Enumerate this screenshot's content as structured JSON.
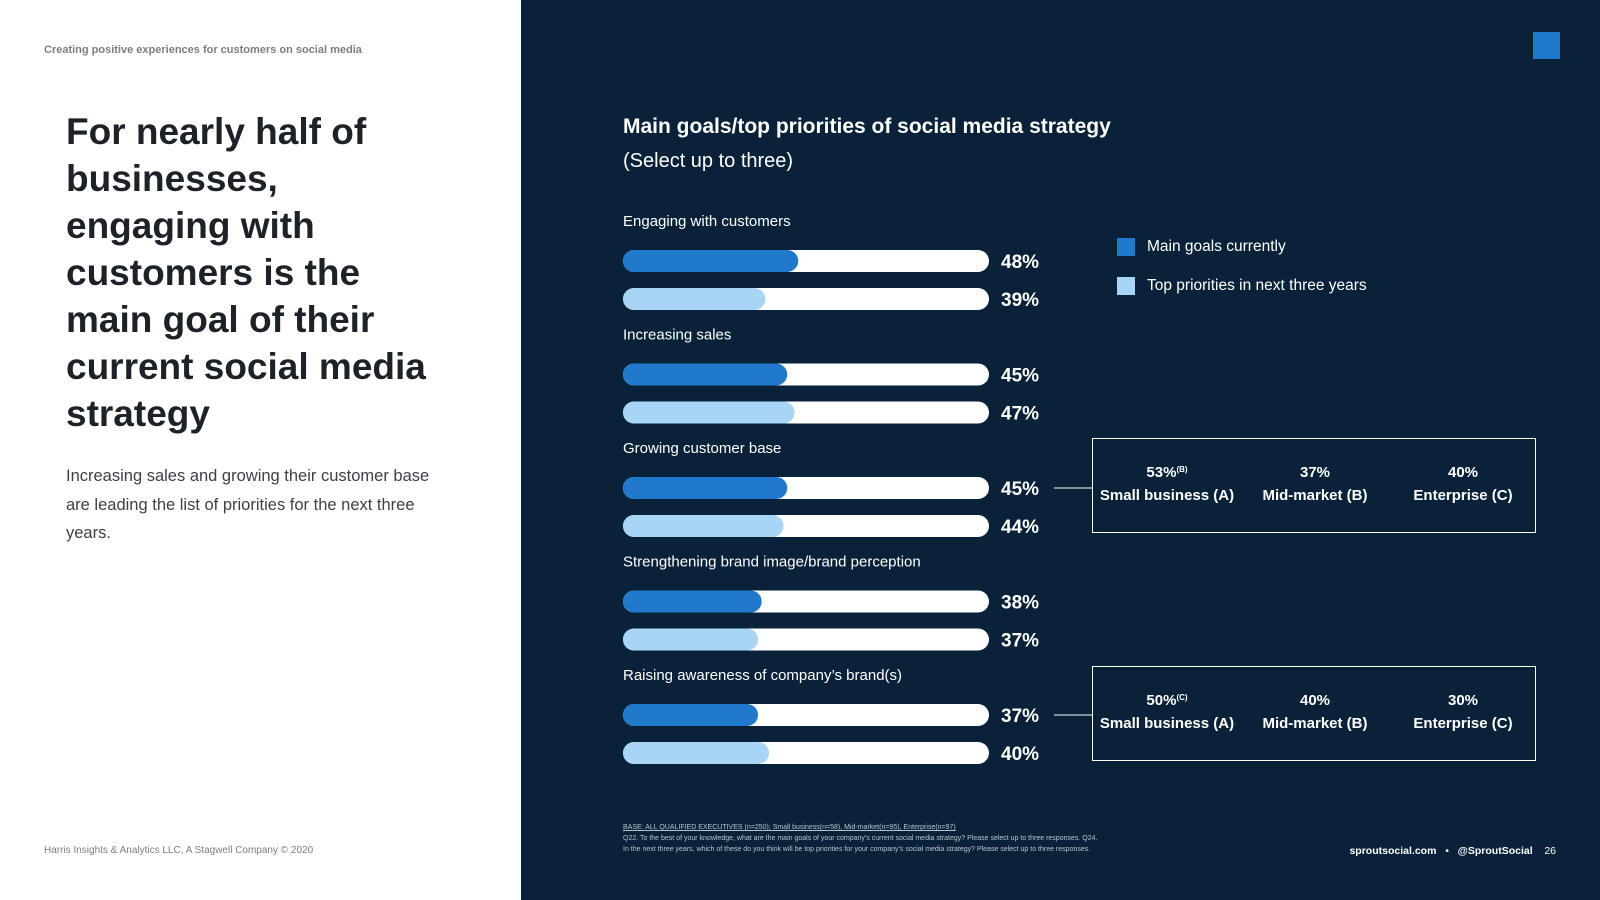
{
  "left": {
    "kicker": "Creating positive experiences for customers on social media",
    "headline": "For nearly half of businesses, engaging with customers is the main goal of their current social media strategy",
    "body": "Increasing sales and growing their customer base are leading the list of priorities for the next three years.",
    "footer": "Harris Insights & Analytics LLC, A Stagwell Company © 2020"
  },
  "colors": {
    "background": "#0a2239",
    "current": "#2179cb",
    "future": "#a8d4f6",
    "track": "#ffffff"
  },
  "chart_data": {
    "type": "bar",
    "orientation": "horizontal",
    "title": "Main goals/top priorities of social media strategy",
    "subtitle": "(Select up to three)",
    "categories": [
      "Engaging with customers",
      "Increasing sales",
      "Growing customer base",
      "Strengthening brand image/brand perception",
      "Raising awareness of company’s brand(s)"
    ],
    "series": [
      {
        "name": "Main goals currently",
        "values": [
          48,
          45,
          45,
          38,
          37
        ]
      },
      {
        "name": "Top priorities in next three years",
        "values": [
          39,
          47,
          44,
          37,
          40
        ]
      }
    ],
    "value_labels": [
      [
        "48%",
        "45%",
        "45%",
        "38%",
        "37%"
      ],
      [
        "39%",
        "47%",
        "44%",
        "37%",
        "40%"
      ]
    ],
    "xlim": [
      0,
      100
    ],
    "unit": "%",
    "legend": "right"
  },
  "segments": [
    {
      "category_index": 2,
      "items": [
        {
          "value": "53%",
          "sup": "(B)",
          "label": "Small business (A)"
        },
        {
          "value": "37%",
          "sup": "",
          "label": "Mid-market (B)"
        },
        {
          "value": "40%",
          "sup": "",
          "label": "Enterprise (C)"
        }
      ]
    },
    {
      "category_index": 4,
      "items": [
        {
          "value": "50%",
          "sup": "(C)",
          "label": "Small business (A)"
        },
        {
          "value": "40%",
          "sup": "",
          "label": "Mid-market (B)"
        },
        {
          "value": "30%",
          "sup": "",
          "label": "Enterprise (C)"
        }
      ]
    }
  ],
  "notes": {
    "base": "BASE: ALL QUALIFIED EXECUTIVES (n=250); Small business(n=58), Mid-market(n=95), Enterprise(n=97)",
    "q1": "Q22. To the best of your knowledge, what are the main goals of your company’s current social media strategy? Please select up to three responses. Q24.",
    "q2": "In the next three years, which of these do you think will be top priorities for your company’s social media strategy? Please select up to three responses."
  },
  "footer_right": {
    "site": "sproutsocial.com",
    "separator": "•",
    "handle": "@SproutSocial",
    "page": "26"
  }
}
